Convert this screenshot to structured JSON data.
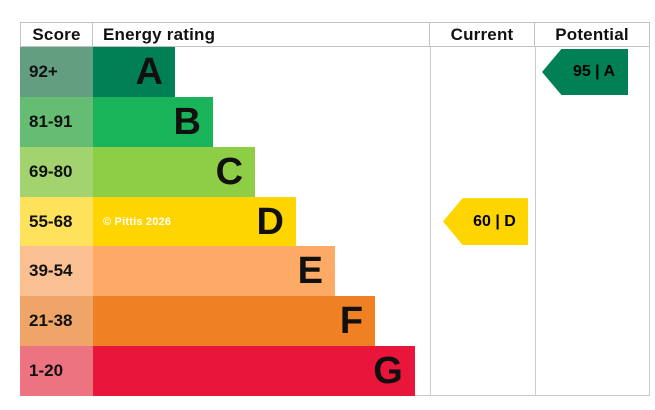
{
  "title_row": {
    "score": "Score",
    "energy_rating": "Energy rating",
    "current": "Current",
    "potential": "Potential"
  },
  "watermark": {
    "text": "© Pittis 2026",
    "band": "D",
    "color": "#ffffff"
  },
  "chart_data": {
    "type": "bar",
    "subtype": "epc-energy-rating",
    "title": "Energy rating",
    "columns": [
      "Score",
      "Energy rating",
      "Current",
      "Potential"
    ],
    "bands": [
      {
        "letter": "A",
        "score_range": "92+",
        "bar_color": "#008054",
        "score_cell_color": "#649e80",
        "bar_width_pct": 24.3
      },
      {
        "letter": "B",
        "score_range": "81-91",
        "bar_color": "#19b459",
        "score_cell_color": "#65bd74",
        "bar_width_pct": 35.6
      },
      {
        "letter": "C",
        "score_range": "69-80",
        "bar_color": "#8dce46",
        "score_cell_color": "#a3d36f",
        "bar_width_pct": 48.1
      },
      {
        "letter": "D",
        "score_range": "55-68",
        "bar_color": "#ffd500",
        "score_cell_color": "#ffe25c",
        "bar_width_pct": 60.2
      },
      {
        "letter": "E",
        "score_range": "39-54",
        "bar_color": "#fcaa65",
        "score_cell_color": "#fac092",
        "bar_width_pct": 71.8
      },
      {
        "letter": "F",
        "score_range": "21-38",
        "bar_color": "#ef8023",
        "score_cell_color": "#f0a568",
        "bar_width_pct": 83.7
      },
      {
        "letter": "G",
        "score_range": "1-20",
        "bar_color": "#e9153b",
        "score_cell_color": "#ee7380",
        "bar_width_pct": 95.5
      }
    ],
    "current": {
      "label": "60 | D",
      "value": 60,
      "band": "D",
      "band_index": 3,
      "arrow_color": "#ffd500"
    },
    "potential": {
      "label": "95 | A",
      "value": 95,
      "band": "A",
      "band_index": 0,
      "arrow_color": "#008054"
    },
    "border_color": "#c7c7c7"
  }
}
